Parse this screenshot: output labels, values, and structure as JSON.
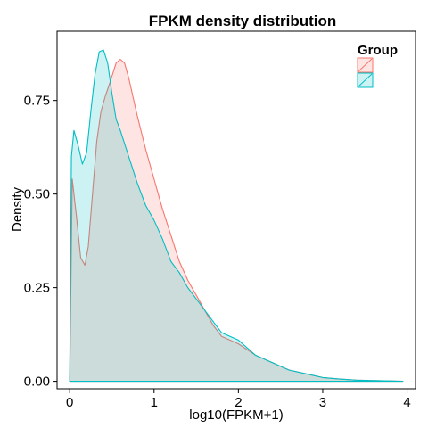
{
  "chart_data": {
    "type": "area",
    "title": "FPKM density distribution",
    "xlabel": "log10(FPKM+1)",
    "ylabel": "Density",
    "xlim": [
      -0.15,
      4.1
    ],
    "ylim": [
      -0.02,
      0.935
    ],
    "x_ticks": [
      0,
      1,
      2,
      3,
      4
    ],
    "x_tick_labels": [
      "0",
      "1",
      "2",
      "3",
      "4"
    ],
    "y_ticks": [
      0,
      0.25,
      0.5,
      0.75
    ],
    "y_tick_labels": [
      "0.00",
      "0.25",
      "0.50",
      "0.75"
    ],
    "grid": false,
    "legend": {
      "title": "Group",
      "position": "top-right"
    },
    "series": [
      {
        "color": "#F8766D",
        "fill": "#F8766D",
        "x": [
          0,
          0.03,
          0.08,
          0.13,
          0.18,
          0.22,
          0.27,
          0.32,
          0.37,
          0.42,
          0.48,
          0.55,
          0.6,
          0.65,
          0.7,
          0.75,
          0.8,
          0.9,
          1.0,
          1.1,
          1.2,
          1.3,
          1.4,
          1.5,
          1.6,
          1.7,
          1.8,
          1.9,
          2.0,
          2.1,
          2.2,
          2.4,
          2.6,
          2.8,
          3.0,
          3.2,
          3.4,
          3.6,
          3.8,
          3.95
        ],
        "y": [
          0.0,
          0.54,
          0.44,
          0.33,
          0.31,
          0.36,
          0.5,
          0.64,
          0.72,
          0.76,
          0.8,
          0.85,
          0.86,
          0.85,
          0.81,
          0.76,
          0.71,
          0.62,
          0.54,
          0.46,
          0.39,
          0.32,
          0.27,
          0.23,
          0.19,
          0.15,
          0.12,
          0.11,
          0.1,
          0.085,
          0.07,
          0.05,
          0.03,
          0.02,
          0.01,
          0.006,
          0.003,
          0.002,
          0.001,
          0.0
        ]
      },
      {
        "color": "#00BFC4",
        "fill": "#00BFC4",
        "x": [
          0,
          0.02,
          0.05,
          0.1,
          0.15,
          0.2,
          0.25,
          0.3,
          0.35,
          0.4,
          0.45,
          0.5,
          0.55,
          0.6,
          0.7,
          0.8,
          0.9,
          1.0,
          1.1,
          1.2,
          1.3,
          1.4,
          1.5,
          1.6,
          1.7,
          1.8,
          1.9,
          2.0,
          2.1,
          2.2,
          2.4,
          2.6,
          2.8,
          3.0,
          3.2,
          3.4,
          3.6,
          3.8,
          3.95
        ],
        "y": [
          0.0,
          0.6,
          0.67,
          0.63,
          0.58,
          0.61,
          0.72,
          0.82,
          0.88,
          0.885,
          0.85,
          0.77,
          0.7,
          0.67,
          0.6,
          0.53,
          0.47,
          0.43,
          0.38,
          0.32,
          0.29,
          0.25,
          0.22,
          0.19,
          0.16,
          0.13,
          0.12,
          0.11,
          0.09,
          0.07,
          0.05,
          0.03,
          0.02,
          0.01,
          0.006,
          0.003,
          0.002,
          0.001,
          0.0
        ]
      }
    ]
  }
}
